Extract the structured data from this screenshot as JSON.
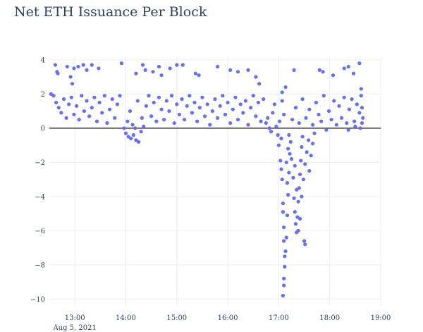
{
  "chart_data": {
    "type": "scatter",
    "title": "Net ETH Issuance Per Block",
    "xlabel": "",
    "ylabel": "",
    "x_date_label": "Aug 5, 2021",
    "x_range": [
      "12:30",
      "19:00"
    ],
    "x_ticks": [
      "13:00",
      "14:00",
      "15:00",
      "16:00",
      "17:00",
      "18:00",
      "19:00"
    ],
    "ylim": [
      -10.4,
      4.2
    ],
    "y_ticks": [
      4,
      2,
      0,
      -2,
      -4,
      -6,
      -8,
      -10
    ],
    "y_tick_labels": [
      "4",
      "2",
      "0",
      "−2",
      "−4",
      "−6",
      "−8",
      "−10"
    ],
    "grid": true,
    "zero_line": true,
    "legend": "none",
    "marker_color": "#636efa",
    "series": [
      {
        "points": [
          [
            "12:37",
            3.7
          ],
          [
            "12:39",
            3.3
          ],
          [
            "12:40",
            3.2
          ],
          [
            "12:51",
            3.6
          ],
          [
            "12:55",
            3.0
          ],
          [
            "12:57",
            2.6
          ],
          [
            "12:59",
            3.5
          ],
          [
            "13:04",
            3.6
          ],
          [
            "13:10",
            3.7
          ],
          [
            "13:14",
            3.4
          ],
          [
            "13:20",
            3.7
          ],
          [
            "13:28",
            3.5
          ],
          [
            "13:55",
            3.8
          ],
          [
            "14:12",
            3.2
          ],
          [
            "14:20",
            3.7
          ],
          [
            "14:23",
            3.4
          ],
          [
            "14:32",
            3.3
          ],
          [
            "14:39",
            3.6
          ],
          [
            "14:42",
            3.1
          ],
          [
            "14:52",
            3.5
          ],
          [
            "15:00",
            3.7
          ],
          [
            "15:07",
            3.7
          ],
          [
            "15:22",
            3.2
          ],
          [
            "15:26",
            3.1
          ],
          [
            "15:48",
            3.6
          ],
          [
            "16:03",
            3.4
          ],
          [
            "16:12",
            3.3
          ],
          [
            "16:24",
            3.4
          ],
          [
            "16:33",
            3.0
          ],
          [
            "16:37",
            2.6
          ],
          [
            "17:04",
            2.1
          ],
          [
            "17:08",
            2.4
          ],
          [
            "17:18",
            3.4
          ],
          [
            "17:48",
            3.4
          ],
          [
            "17:52",
            3.3
          ],
          [
            "18:04",
            3.1
          ],
          [
            "18:17",
            3.5
          ],
          [
            "18:22",
            3.6
          ],
          [
            "18:28",
            3.2
          ],
          [
            "18:35",
            3.8
          ],
          [
            "18:37",
            2.3
          ],
          [
            "12:32",
            2.0
          ],
          [
            "12:35",
            1.9
          ],
          [
            "12:38",
            1.5
          ],
          [
            "12:41",
            1.2
          ],
          [
            "12:44",
            0.9
          ],
          [
            "12:47",
            1.7
          ],
          [
            "12:50",
            0.6
          ],
          [
            "12:53",
            1.4
          ],
          [
            "12:56",
            1.8
          ],
          [
            "12:59",
            0.8
          ],
          [
            "13:02",
            1.3
          ],
          [
            "13:05",
            0.5
          ],
          [
            "13:08",
            1.9
          ],
          [
            "13:11",
            1.0
          ],
          [
            "13:14",
            1.6
          ],
          [
            "13:17",
            0.7
          ],
          [
            "13:20",
            1.2
          ],
          [
            "13:23",
            1.8
          ],
          [
            "13:26",
            0.4
          ],
          [
            "13:29",
            1.5
          ],
          [
            "13:32",
            0.9
          ],
          [
            "13:35",
            1.9
          ],
          [
            "13:38",
            0.3
          ],
          [
            "13:41",
            1.1
          ],
          [
            "13:44",
            1.7
          ],
          [
            "13:47",
            0.6
          ],
          [
            "13:50",
            1.4
          ],
          [
            "13:53",
            1.9
          ],
          [
            "14:00",
            -0.3
          ],
          [
            "14:03",
            -0.5
          ],
          [
            "14:06",
            -0.6
          ],
          [
            "14:09",
            -0.4
          ],
          [
            "14:12",
            -0.7
          ],
          [
            "14:15",
            -0.8
          ],
          [
            "14:08",
            0.2
          ],
          [
            "14:11",
            0.0
          ],
          [
            "14:18",
            -0.2
          ],
          [
            "14:21",
            0.1
          ],
          [
            "13:58",
            0.0
          ],
          [
            "14:02",
            0.4
          ],
          [
            "14:05",
            1.0
          ],
          [
            "14:14",
            1.6
          ],
          [
            "14:19",
            0.6
          ],
          [
            "14:24",
            1.3
          ],
          [
            "14:27",
            1.9
          ],
          [
            "14:30",
            0.7
          ],
          [
            "14:33",
            1.5
          ],
          [
            "14:36",
            0.4
          ],
          [
            "14:39",
            1.8
          ],
          [
            "14:42",
            1.1
          ],
          [
            "14:45",
            0.5
          ],
          [
            "14:48",
            1.6
          ],
          [
            "14:51",
            1.0
          ],
          [
            "14:54",
            1.9
          ],
          [
            "14:57",
            0.3
          ],
          [
            "15:00",
            1.4
          ],
          [
            "15:03",
            0.8
          ],
          [
            "15:06",
            1.7
          ],
          [
            "15:09",
            0.5
          ],
          [
            "15:12",
            1.3
          ],
          [
            "15:15",
            1.9
          ],
          [
            "15:18",
            0.9
          ],
          [
            "15:21",
            1.5
          ],
          [
            "15:24",
            0.4
          ],
          [
            "15:27",
            1.2
          ],
          [
            "15:30",
            1.8
          ],
          [
            "15:33",
            0.7
          ],
          [
            "15:36",
            1.4
          ],
          [
            "15:39",
            0.2
          ],
          [
            "15:42",
            1.0
          ],
          [
            "15:45",
            1.7
          ],
          [
            "15:48",
            0.6
          ],
          [
            "15:51",
            1.3
          ],
          [
            "15:54",
            1.9
          ],
          [
            "15:57",
            0.8
          ],
          [
            "16:00",
            1.5
          ],
          [
            "16:03",
            0.3
          ],
          [
            "16:06",
            1.1
          ],
          [
            "16:09",
            1.8
          ],
          [
            "16:12",
            0.5
          ],
          [
            "16:15",
            1.4
          ],
          [
            "16:18",
            0.9
          ],
          [
            "16:21",
            1.6
          ],
          [
            "16:24",
            0.2
          ],
          [
            "16:27",
            1.2
          ],
          [
            "16:30",
            1.9
          ],
          [
            "16:33",
            0.7
          ],
          [
            "16:36",
            1.5
          ],
          [
            "16:39",
            0.4
          ],
          [
            "16:42",
            1.7
          ],
          [
            "16:45",
            0.3
          ],
          [
            "16:47",
            0.6
          ],
          [
            "16:49",
            0.0
          ],
          [
            "16:51",
            -0.2
          ],
          [
            "16:53",
            0.9
          ],
          [
            "16:55",
            1.4
          ],
          [
            "16:57",
            0.1
          ],
          [
            "16:59",
            -0.4
          ],
          [
            "17:01",
            0.4
          ],
          [
            "17:03",
            -0.6
          ],
          [
            "17:04",
            1.6
          ],
          [
            "17:06",
            0.8
          ],
          [
            "17:00",
            -1.0
          ],
          [
            "17:02",
            -1.9
          ],
          [
            "17:03",
            -2.4
          ],
          [
            "17:04",
            -3.0
          ],
          [
            "17:05",
            -4.4
          ],
          [
            "17:05",
            -4.9
          ],
          [
            "17:06",
            -5.8
          ],
          [
            "17:06",
            -6.6
          ],
          [
            "17:07",
            -7.5
          ],
          [
            "17:07",
            -8.1
          ],
          [
            "17:06",
            -8.8
          ],
          [
            "17:06",
            -9.2
          ],
          [
            "17:05",
            -9.8
          ],
          [
            "17:08",
            -7.2
          ],
          [
            "17:09",
            -6.4
          ],
          [
            "17:10",
            -5.1
          ],
          [
            "17:11",
            -3.9
          ],
          [
            "17:12",
            -2.6
          ],
          [
            "17:13",
            -1.5
          ],
          [
            "17:14",
            -0.8
          ],
          [
            "17:09",
            -2.0
          ],
          [
            "17:10",
            -3.2
          ],
          [
            "17:11",
            -1.2
          ],
          [
            "17:12",
            -0.4
          ],
          [
            "17:15",
            -1.8
          ],
          [
            "17:17",
            -2.9
          ],
          [
            "17:18",
            -4.1
          ],
          [
            "17:19",
            -4.9
          ],
          [
            "17:20",
            -5.6
          ],
          [
            "17:21",
            -6.1
          ],
          [
            "17:22",
            -5.2
          ],
          [
            "17:23",
            -4.3
          ],
          [
            "17:24",
            -3.5
          ],
          [
            "17:25",
            -2.7
          ],
          [
            "17:26",
            -1.9
          ],
          [
            "17:27",
            -1.1
          ],
          [
            "17:28",
            -0.5
          ],
          [
            "17:19",
            -2.2
          ],
          [
            "17:21",
            -3.6
          ],
          [
            "17:23",
            -6.0
          ],
          [
            "17:25",
            -5.3
          ],
          [
            "17:27",
            -4.0
          ],
          [
            "17:29",
            -3.0
          ],
          [
            "17:30",
            -6.6
          ],
          [
            "17:31",
            -6.8
          ],
          [
            "17:31",
            -2.1
          ],
          [
            "17:33",
            -1.4
          ],
          [
            "17:35",
            -0.7
          ],
          [
            "17:36",
            -2.5
          ],
          [
            "17:38",
            -1.6
          ],
          [
            "17:40",
            -0.9
          ],
          [
            "17:42",
            -0.3
          ],
          [
            "17:16",
            0.5
          ],
          [
            "17:20",
            1.2
          ],
          [
            "17:24",
            0.3
          ],
          [
            "17:28",
            1.7
          ],
          [
            "17:32",
            0.6
          ],
          [
            "17:36",
            1.1
          ],
          [
            "17:40",
            0.2
          ],
          [
            "17:44",
            1.5
          ],
          [
            "17:47",
            0.8
          ],
          [
            "17:50",
            0.4
          ],
          [
            "17:53",
            1.9
          ],
          [
            "17:56",
            -0.1
          ],
          [
            "17:59",
            1.0
          ],
          [
            "18:02",
            0.5
          ],
          [
            "18:05",
            1.6
          ],
          [
            "18:08",
            0.2
          ],
          [
            "18:11",
            1.3
          ],
          [
            "18:14",
            0.6
          ],
          [
            "18:17",
            1.8
          ],
          [
            "18:20",
            0.3
          ],
          [
            "18:23",
            1.1
          ],
          [
            "18:26",
            1.7
          ],
          [
            "18:29",
            0.4
          ],
          [
            "18:32",
            1.4
          ],
          [
            "18:35",
            0.9
          ],
          [
            "18:37",
            1.9
          ],
          [
            "18:38",
            0.3
          ],
          [
            "18:38",
            1.2
          ],
          [
            "18:39",
            0.6
          ],
          [
            "18:36",
            0.0
          ],
          [
            "18:30",
            0.1
          ],
          [
            "18:22",
            -0.1
          ]
        ]
      }
    ]
  }
}
